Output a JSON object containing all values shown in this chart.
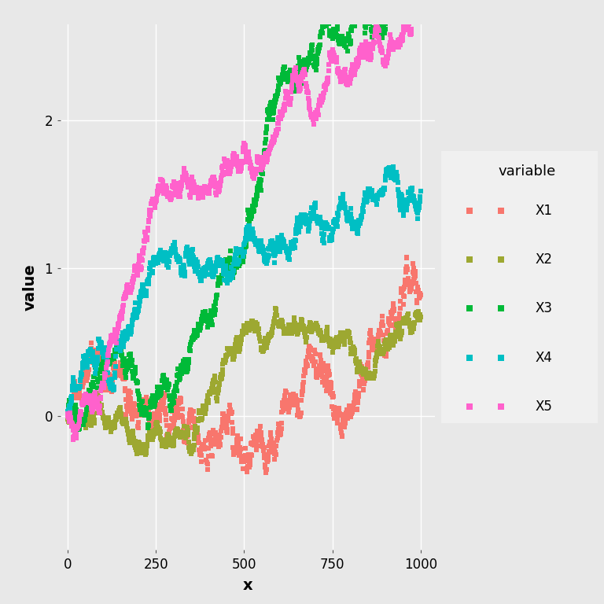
{
  "title": "",
  "xlabel": "x",
  "ylabel": "value",
  "legend_title": "variable",
  "variables": [
    "X1",
    "X2",
    "X3",
    "X4",
    "X5"
  ],
  "colors": {
    "X1": "#F8766D",
    "X2": "#9DA831",
    "X3": "#00BA38",
    "X4": "#00BFC4",
    "X5": "#FF61CC"
  },
  "n_points": 1000,
  "background_color": "#E8E8E8",
  "panel_background": "#E8E8E8",
  "grid_color": "#FFFFFF",
  "xlim": [
    -20,
    1040
  ],
  "ylim": [
    -0.9,
    2.65
  ],
  "yticks": [
    0.0,
    1.0,
    2.0
  ],
  "xticks": [
    0,
    250,
    500,
    750,
    1000
  ],
  "marker_size": 18,
  "alpha": 1.0,
  "figsize": [
    7.68,
    7.68
  ],
  "dpi": 100
}
